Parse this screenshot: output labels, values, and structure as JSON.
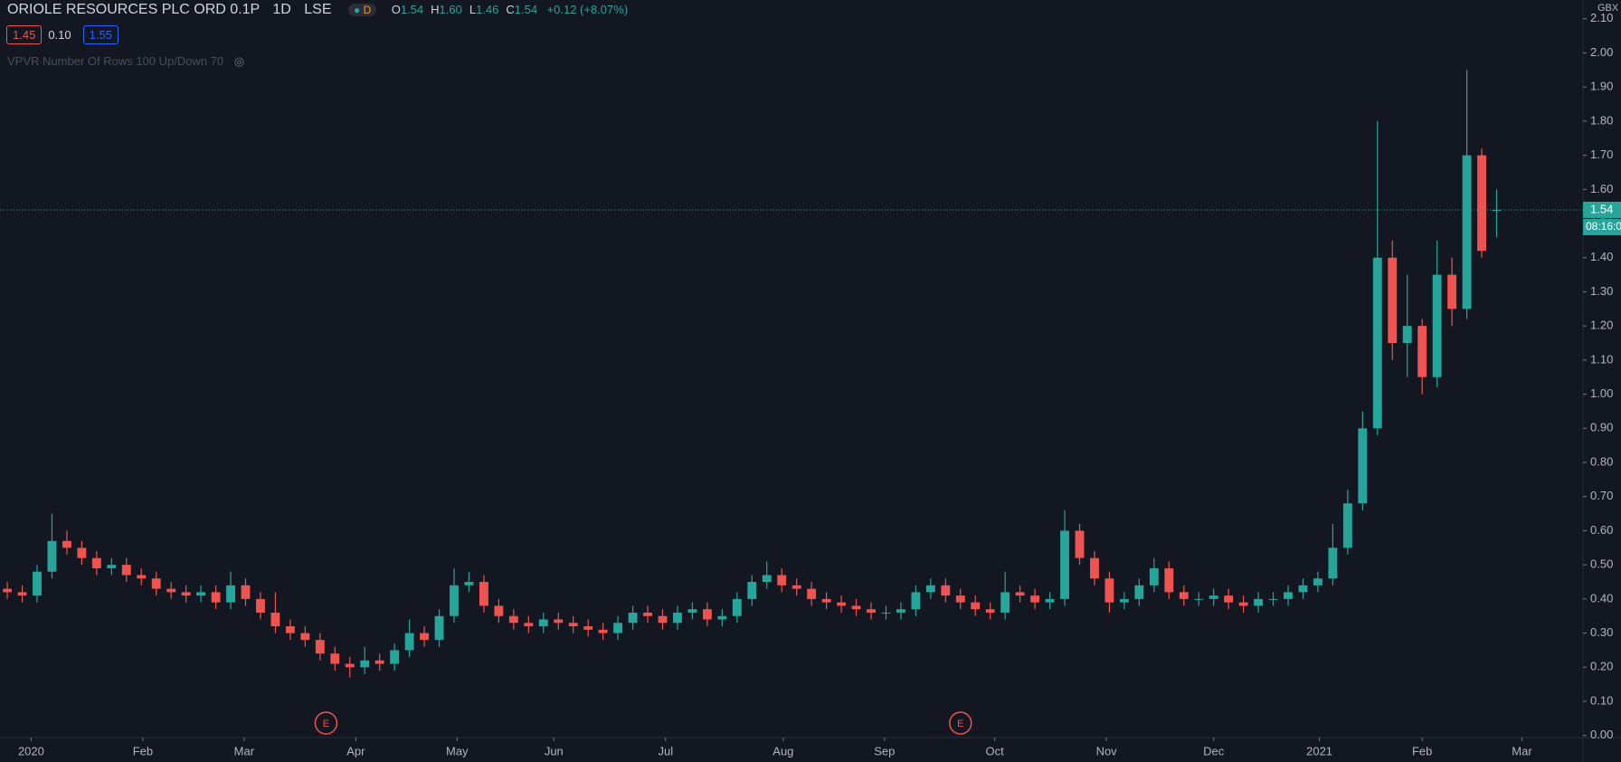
{
  "header": {
    "title": "ORIOLE RESOURCES PLC ORD 0.1P",
    "interval": "1D",
    "exchange": "LSE",
    "status": "D",
    "ohlc": [
      {
        "key": "O",
        "value": "1.54"
      },
      {
        "key": "H",
        "value": "1.60"
      },
      {
        "key": "L",
        "value": "1.46"
      },
      {
        "key": "C",
        "value": "1.54"
      }
    ],
    "change": "+0.12 (+8.07%)",
    "badges": [
      "1.45",
      "0.10",
      "1.55"
    ],
    "indicator": "VPVR Number Of Rows 100 Up/Down 70"
  },
  "chart_data": {
    "type": "candlestick",
    "currency": "GBX",
    "up_color": "#26a69a",
    "down_color": "#ef5350",
    "grid": false,
    "current_price": 1.54,
    "countdown": "08:16:0",
    "candles": [
      [
        0.43,
        0.45,
        0.4,
        0.42
      ],
      [
        0.42,
        0.44,
        0.39,
        0.41
      ],
      [
        0.41,
        0.5,
        0.39,
        0.48
      ],
      [
        0.48,
        0.65,
        0.46,
        0.57
      ],
      [
        0.57,
        0.6,
        0.53,
        0.55
      ],
      [
        0.55,
        0.57,
        0.5,
        0.52
      ],
      [
        0.52,
        0.54,
        0.47,
        0.49
      ],
      [
        0.49,
        0.52,
        0.47,
        0.5
      ],
      [
        0.5,
        0.52,
        0.45,
        0.47
      ],
      [
        0.47,
        0.49,
        0.44,
        0.46
      ],
      [
        0.46,
        0.48,
        0.41,
        0.43
      ],
      [
        0.43,
        0.45,
        0.4,
        0.42
      ],
      [
        0.42,
        0.44,
        0.39,
        0.41
      ],
      [
        0.41,
        0.44,
        0.39,
        0.42
      ],
      [
        0.42,
        0.44,
        0.37,
        0.39
      ],
      [
        0.39,
        0.48,
        0.37,
        0.44
      ],
      [
        0.44,
        0.46,
        0.38,
        0.4
      ],
      [
        0.4,
        0.42,
        0.34,
        0.36
      ],
      [
        0.36,
        0.42,
        0.3,
        0.32
      ],
      [
        0.32,
        0.34,
        0.28,
        0.3
      ],
      [
        0.3,
        0.32,
        0.26,
        0.28
      ],
      [
        0.28,
        0.3,
        0.22,
        0.24
      ],
      [
        0.24,
        0.26,
        0.19,
        0.21
      ],
      [
        0.21,
        0.23,
        0.17,
        0.2
      ],
      [
        0.2,
        0.26,
        0.18,
        0.22
      ],
      [
        0.22,
        0.24,
        0.19,
        0.21
      ],
      [
        0.21,
        0.27,
        0.19,
        0.25
      ],
      [
        0.25,
        0.34,
        0.23,
        0.3
      ],
      [
        0.3,
        0.32,
        0.26,
        0.28
      ],
      [
        0.28,
        0.37,
        0.26,
        0.35
      ],
      [
        0.35,
        0.49,
        0.33,
        0.44
      ],
      [
        0.44,
        0.48,
        0.42,
        0.45
      ],
      [
        0.45,
        0.47,
        0.36,
        0.38
      ],
      [
        0.38,
        0.4,
        0.33,
        0.35
      ],
      [
        0.35,
        0.37,
        0.31,
        0.33
      ],
      [
        0.33,
        0.35,
        0.3,
        0.32
      ],
      [
        0.32,
        0.36,
        0.3,
        0.34
      ],
      [
        0.34,
        0.36,
        0.31,
        0.33
      ],
      [
        0.33,
        0.35,
        0.3,
        0.32
      ],
      [
        0.32,
        0.34,
        0.29,
        0.31
      ],
      [
        0.31,
        0.33,
        0.28,
        0.3
      ],
      [
        0.3,
        0.35,
        0.28,
        0.33
      ],
      [
        0.33,
        0.38,
        0.31,
        0.36
      ],
      [
        0.36,
        0.38,
        0.33,
        0.35
      ],
      [
        0.35,
        0.37,
        0.31,
        0.33
      ],
      [
        0.33,
        0.38,
        0.31,
        0.36
      ],
      [
        0.36,
        0.39,
        0.34,
        0.37
      ],
      [
        0.37,
        0.39,
        0.32,
        0.34
      ],
      [
        0.34,
        0.37,
        0.32,
        0.35
      ],
      [
        0.35,
        0.42,
        0.33,
        0.4
      ],
      [
        0.4,
        0.47,
        0.38,
        0.45
      ],
      [
        0.45,
        0.51,
        0.43,
        0.47
      ],
      [
        0.47,
        0.49,
        0.42,
        0.44
      ],
      [
        0.44,
        0.46,
        0.41,
        0.43
      ],
      [
        0.43,
        0.45,
        0.38,
        0.4
      ],
      [
        0.4,
        0.42,
        0.37,
        0.39
      ],
      [
        0.39,
        0.41,
        0.36,
        0.38
      ],
      [
        0.38,
        0.4,
        0.35,
        0.37
      ],
      [
        0.37,
        0.39,
        0.34,
        0.36
      ],
      [
        0.36,
        0.38,
        0.34,
        0.36
      ],
      [
        0.36,
        0.39,
        0.34,
        0.37
      ],
      [
        0.37,
        0.44,
        0.35,
        0.42
      ],
      [
        0.42,
        0.46,
        0.4,
        0.44
      ],
      [
        0.44,
        0.46,
        0.39,
        0.41
      ],
      [
        0.41,
        0.43,
        0.37,
        0.39
      ],
      [
        0.39,
        0.41,
        0.35,
        0.37
      ],
      [
        0.37,
        0.39,
        0.34,
        0.36
      ],
      [
        0.36,
        0.48,
        0.34,
        0.42
      ],
      [
        0.42,
        0.44,
        0.39,
        0.41
      ],
      [
        0.41,
        0.43,
        0.37,
        0.39
      ],
      [
        0.39,
        0.42,
        0.37,
        0.4
      ],
      [
        0.4,
        0.66,
        0.38,
        0.6
      ],
      [
        0.6,
        0.62,
        0.5,
        0.52
      ],
      [
        0.52,
        0.54,
        0.44,
        0.46
      ],
      [
        0.46,
        0.48,
        0.36,
        0.39
      ],
      [
        0.39,
        0.42,
        0.37,
        0.4
      ],
      [
        0.4,
        0.46,
        0.38,
        0.44
      ],
      [
        0.44,
        0.52,
        0.42,
        0.49
      ],
      [
        0.49,
        0.51,
        0.4,
        0.42
      ],
      [
        0.42,
        0.44,
        0.38,
        0.4
      ],
      [
        0.4,
        0.42,
        0.38,
        0.4
      ],
      [
        0.4,
        0.43,
        0.38,
        0.41
      ],
      [
        0.41,
        0.43,
        0.37,
        0.39
      ],
      [
        0.39,
        0.41,
        0.36,
        0.38
      ],
      [
        0.38,
        0.42,
        0.36,
        0.4
      ],
      [
        0.4,
        0.42,
        0.38,
        0.4
      ],
      [
        0.4,
        0.44,
        0.38,
        0.42
      ],
      [
        0.42,
        0.46,
        0.4,
        0.44
      ],
      [
        0.44,
        0.48,
        0.42,
        0.46
      ],
      [
        0.46,
        0.62,
        0.44,
        0.55
      ],
      [
        0.55,
        0.72,
        0.53,
        0.68
      ],
      [
        0.68,
        0.95,
        0.66,
        0.9
      ],
      [
        0.9,
        1.8,
        0.88,
        1.4
      ],
      [
        1.4,
        1.45,
        1.1,
        1.15
      ],
      [
        1.15,
        1.35,
        1.05,
        1.2
      ],
      [
        1.2,
        1.22,
        1.0,
        1.05
      ],
      [
        1.05,
        1.45,
        1.02,
        1.35
      ],
      [
        1.35,
        1.4,
        1.2,
        1.25
      ],
      [
        1.25,
        1.95,
        1.22,
        1.7
      ],
      [
        1.7,
        1.72,
        1.4,
        1.42
      ],
      [
        1.54,
        1.6,
        1.46,
        1.54
      ]
    ],
    "events": [
      {
        "x": 21.4,
        "label": "E"
      },
      {
        "x": 64.0,
        "label": "E"
      }
    ],
    "xlim": [
      -0.49,
      105.8
    ],
    "xticks": [
      {
        "value": 1.6,
        "label": "2020"
      },
      {
        "value": 9.1,
        "label": "Feb"
      },
      {
        "value": 15.9,
        "label": "Mar"
      },
      {
        "value": 23.4,
        "label": "Apr"
      },
      {
        "value": 30.2,
        "label": "May"
      },
      {
        "value": 36.7,
        "label": "Jun"
      },
      {
        "value": 44.2,
        "label": "Jul"
      },
      {
        "value": 52.1,
        "label": "Aug"
      },
      {
        "value": 58.9,
        "label": "Sep"
      },
      {
        "value": 66.3,
        "label": "Oct"
      },
      {
        "value": 73.8,
        "label": "Nov"
      },
      {
        "value": 81.0,
        "label": "Dec"
      },
      {
        "value": 88.1,
        "label": "2021"
      },
      {
        "value": 95.0,
        "label": "Feb"
      },
      {
        "value": 101.7,
        "label": "Mar"
      }
    ],
    "ylim": [
      -0.006,
      2.155
    ],
    "yticks": [
      {
        "value": 0,
        "label": "0.00"
      },
      {
        "value": 0.1,
        "label": "0.10"
      },
      {
        "value": 0.2,
        "label": "0.20"
      },
      {
        "value": 0.3,
        "label": "0.30"
      },
      {
        "value": 0.4,
        "label": "0.40"
      },
      {
        "value": 0.5,
        "label": "0.50"
      },
      {
        "value": 0.6,
        "label": "0.60"
      },
      {
        "value": 0.7,
        "label": "0.70"
      },
      {
        "value": 0.8,
        "label": "0.80"
      },
      {
        "value": 0.9,
        "label": "0.90"
      },
      {
        "value": 1,
        "label": "1.00"
      },
      {
        "value": 1.1,
        "label": "1.10"
      },
      {
        "value": 1.2,
        "label": "1.20"
      },
      {
        "value": 1.3,
        "label": "1.30"
      },
      {
        "value": 1.4,
        "label": "1.40"
      },
      {
        "value": 1.5,
        "label": "1.50"
      },
      {
        "value": 1.6,
        "label": "1.60"
      },
      {
        "value": 1.7,
        "label": "1.70"
      },
      {
        "value": 1.8,
        "label": "1.80"
      },
      {
        "value": 1.9,
        "label": "1.90"
      },
      {
        "value": 2,
        "label": "2.00"
      },
      {
        "value": 2.1,
        "label": "2.10"
      }
    ]
  }
}
